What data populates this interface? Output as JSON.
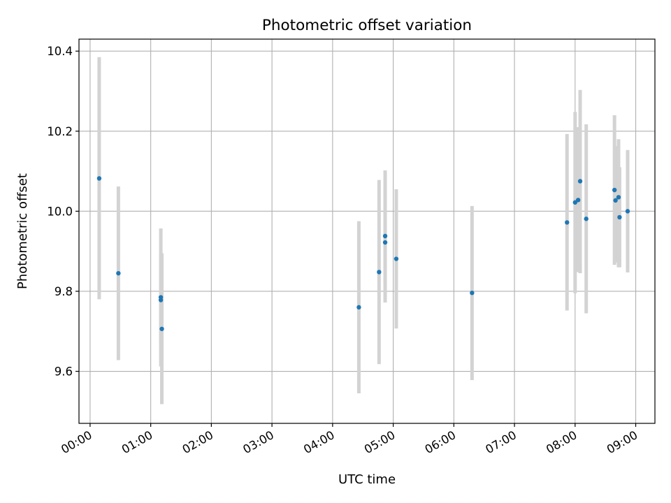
{
  "chart_data": {
    "type": "scatter",
    "title": "Photometric offset variation",
    "xlabel": "UTC time",
    "ylabel": "Photometric offset",
    "xlim": [
      "23:49",
      "09:19"
    ],
    "ylim": [
      9.47,
      10.43
    ],
    "x_ticks": [
      "00:00",
      "01:00",
      "02:00",
      "03:00",
      "04:00",
      "05:00",
      "06:00",
      "07:00",
      "08:00",
      "09:00"
    ],
    "y_ticks": [
      9.6,
      9.8,
      10.0,
      10.2,
      10.4
    ],
    "y_tick_labels": [
      "9.6",
      "9.8",
      "10.0",
      "10.2",
      "10.4"
    ],
    "grid": true,
    "point_color": "#1f77b4",
    "errorbar_color": "#d3d3d3",
    "points": [
      {
        "x": "00:09",
        "y": 10.082,
        "ylow": 9.78,
        "yhigh": 10.385
      },
      {
        "x": "00:28",
        "y": 9.845,
        "ylow": 9.628,
        "yhigh": 10.062
      },
      {
        "x": "01:10",
        "y": 9.785,
        "ylow": 9.612,
        "yhigh": 9.957
      },
      {
        "x": "01:10",
        "y": 9.778,
        "ylow": 9.67,
        "yhigh": 9.895
      },
      {
        "x": "01:11",
        "y": 9.706,
        "ylow": 9.518,
        "yhigh": 9.895
      },
      {
        "x": "04:26",
        "y": 9.76,
        "ylow": 9.545,
        "yhigh": 9.975
      },
      {
        "x": "04:46",
        "y": 9.848,
        "ylow": 9.618,
        "yhigh": 10.078
      },
      {
        "x": "04:52",
        "y": 9.938,
        "ylow": 9.82,
        "yhigh": 10.055
      },
      {
        "x": "04:52",
        "y": 9.922,
        "ylow": 9.772,
        "yhigh": 10.102
      },
      {
        "x": "05:03",
        "y": 9.881,
        "ylow": 9.707,
        "yhigh": 10.055
      },
      {
        "x": "06:18",
        "y": 9.796,
        "ylow": 9.578,
        "yhigh": 10.013
      },
      {
        "x": "07:52",
        "y": 9.972,
        "ylow": 9.752,
        "yhigh": 10.193
      },
      {
        "x": "08:00",
        "y": 10.022,
        "ylow": 9.795,
        "yhigh": 10.248
      },
      {
        "x": "08:03",
        "y": 10.028,
        "ylow": 9.848,
        "yhigh": 10.21
      },
      {
        "x": "08:05",
        "y": 10.075,
        "ylow": 9.845,
        "yhigh": 10.303
      },
      {
        "x": "08:11",
        "y": 9.981,
        "ylow": 9.745,
        "yhigh": 10.217
      },
      {
        "x": "08:39",
        "y": 10.053,
        "ylow": 9.866,
        "yhigh": 10.24
      },
      {
        "x": "08:40",
        "y": 10.027,
        "ylow": 9.872,
        "yhigh": 10.163
      },
      {
        "x": "08:43",
        "y": 10.035,
        "ylow": 9.86,
        "yhigh": 10.18
      },
      {
        "x": "08:44",
        "y": 9.985,
        "ylow": 9.86,
        "yhigh": 10.11
      },
      {
        "x": "08:52",
        "y": 10.0,
        "ylow": 9.847,
        "yhigh": 10.153
      }
    ]
  }
}
